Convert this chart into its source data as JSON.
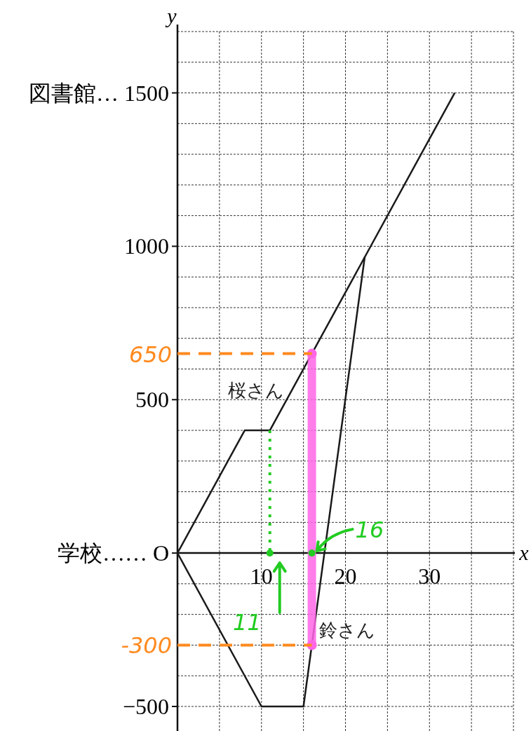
{
  "chart_data": {
    "type": "line",
    "xlabel": "x",
    "ylabel": "y",
    "xlim": [
      0,
      40
    ],
    "ylim": [
      -580,
      1700
    ],
    "xticks": [
      {
        "value": 0,
        "label": null
      },
      {
        "value": 5,
        "label": null
      },
      10,
      {
        "value": 15,
        "label": null
      },
      20,
      {
        "value": 25,
        "label": null
      },
      30,
      {
        "value": 35,
        "label": null
      },
      {
        "value": 40,
        "label": null
      }
    ],
    "yticks": [
      {
        "value": -500,
        "label": "−500"
      },
      {
        "value": -400,
        "label": null
      },
      {
        "value": -300,
        "label": null
      },
      {
        "value": -200,
        "label": null
      },
      {
        "value": -100,
        "label": null
      },
      {
        "value": 0,
        "label": "学校…… O"
      },
      {
        "value": 100,
        "label": null
      },
      {
        "value": 200,
        "label": null
      },
      {
        "value": 300,
        "label": null
      },
      {
        "value": 400,
        "label": null
      },
      500,
      {
        "value": 600,
        "label": null
      },
      {
        "value": 700,
        "label": null
      },
      {
        "value": 800,
        "label": null
      },
      {
        "value": 900,
        "label": null
      },
      1000,
      {
        "value": 1100,
        "label": null
      },
      {
        "value": 1200,
        "label": null
      },
      {
        "value": 1300,
        "label": null
      },
      {
        "value": 1400,
        "label": null
      },
      {
        "value": 1500,
        "label": "図書館… 1500"
      },
      {
        "value": 1600,
        "label": null
      },
      {
        "value": 1700,
        "label": null
      }
    ],
    "grid": true,
    "series": [
      {
        "name": "桜さん",
        "color": "#1a1a1a",
        "x": [
          0,
          8,
          11,
          33
        ],
        "values": [
          0,
          400,
          400,
          1500
        ]
      },
      {
        "name": "鈴さん",
        "color": "#1a1a1a",
        "x": [
          0,
          10,
          15,
          22.3
        ],
        "values": [
          0,
          -500,
          -500,
          966
        ]
      },
      {
        "color": "#ff66e6",
        "x": [
          16,
          16
        ],
        "values": [
          -300,
          650
        ],
        "marker": "circle"
      },
      {
        "color": "#ff8a1f",
        "x": [
          0,
          16
        ],
        "values": [
          650,
          650
        ],
        "line_style": "dashed"
      },
      {
        "color": "#ff8a1f",
        "x": [
          0,
          16
        ],
        "values": [
          -300,
          -300
        ],
        "line_style": "dashed"
      },
      {
        "color": "#22cc22",
        "x": [
          11,
          11
        ],
        "values": [
          400,
          0
        ],
        "line_style": "dotted"
      }
    ],
    "annotations": [
      {
        "text": "650",
        "x": 0,
        "y": 650
      },
      {
        "text": "-300",
        "x": 0,
        "y": -300
      },
      {
        "text": "16",
        "x": 16,
        "y": 0
      },
      {
        "text": "11",
        "x": 11,
        "y": 0
      }
    ]
  }
}
